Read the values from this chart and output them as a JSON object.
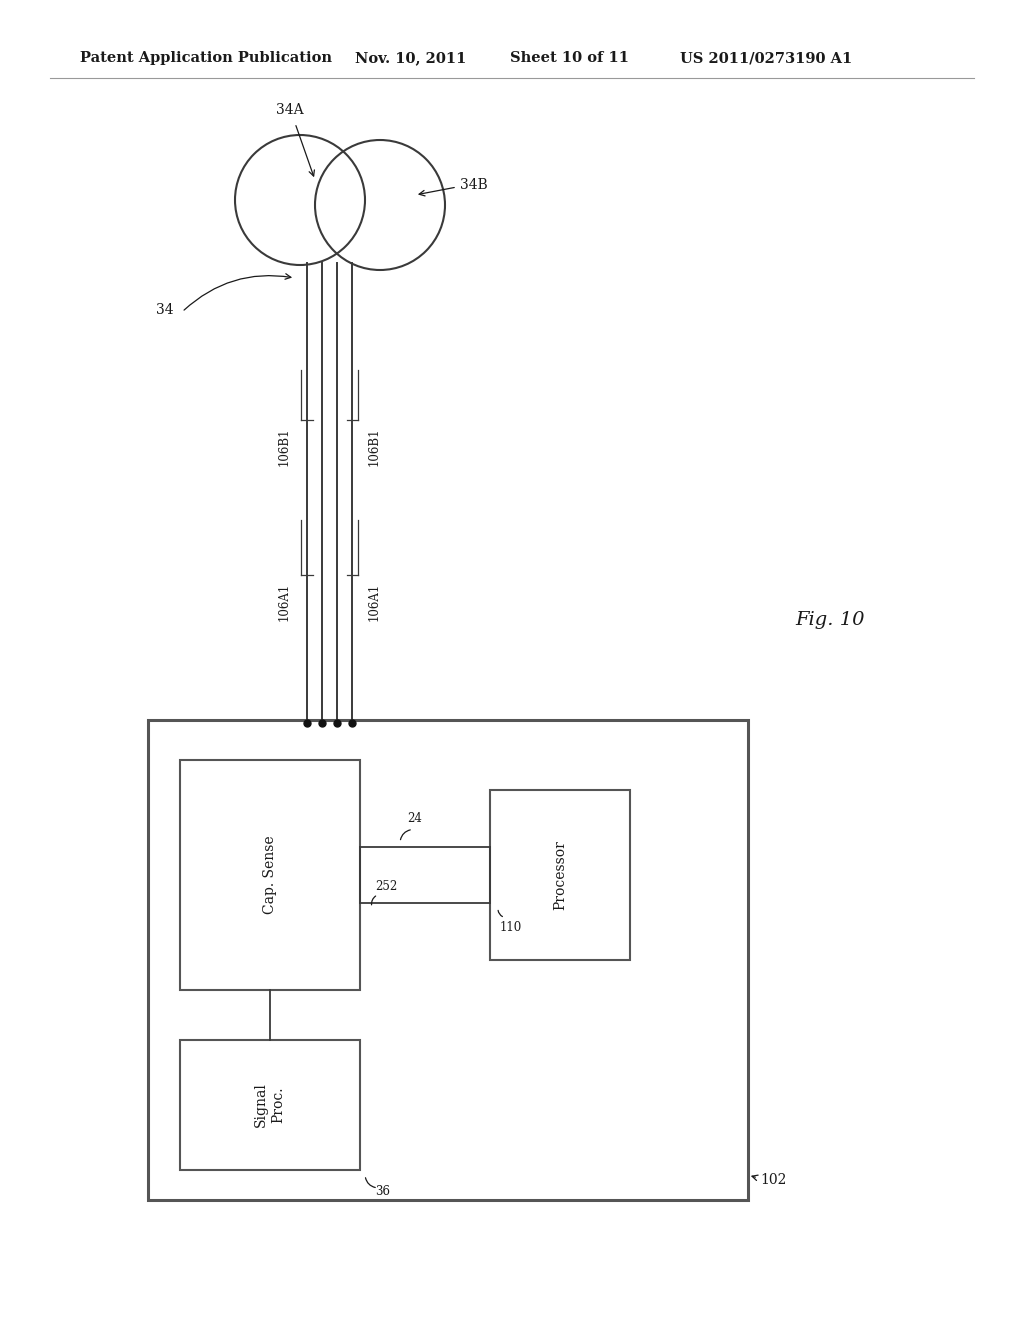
{
  "bg_color": "#ffffff",
  "header_text": "Patent Application Publication",
  "header_date": "Nov. 10, 2011",
  "header_sheet": "Sheet 10 of 11",
  "header_patent": "US 2011/0273190 A1",
  "fig_label": "Fig. 10",
  "lc": "#3a3a3a",
  "tc": "#1a1a1a",
  "fs_header": 10.5,
  "fs_body": 10,
  "fs_small": 9,
  "fs_fig": 14
}
